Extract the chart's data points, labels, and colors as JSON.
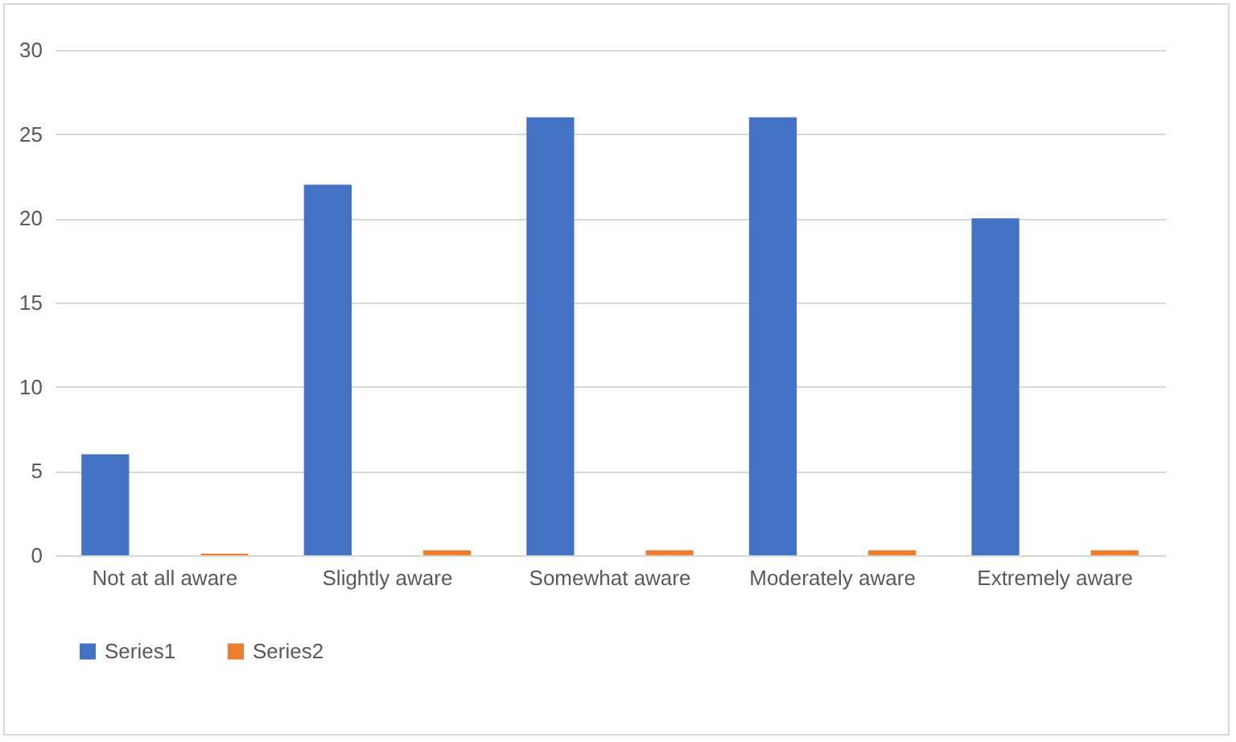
{
  "chart_data": {
    "type": "bar",
    "categories": [
      "Not at all aware",
      "Slightly aware",
      "Somewhat aware",
      "Moderately aware",
      "Extremely aware"
    ],
    "series": [
      {
        "name": "Series1",
        "color": "#4472c4",
        "values": [
          6,
          22,
          26,
          26,
          20
        ]
      },
      {
        "name": "Series2",
        "color": "#ed7d31",
        "values": [
          0.1,
          0.3,
          0.3,
          0.3,
          0.3
        ]
      }
    ],
    "ylim": [
      0,
      30
    ],
    "yticks": [
      0,
      5,
      10,
      15,
      20,
      25,
      30
    ],
    "grid": "y",
    "legend": "bottom"
  }
}
